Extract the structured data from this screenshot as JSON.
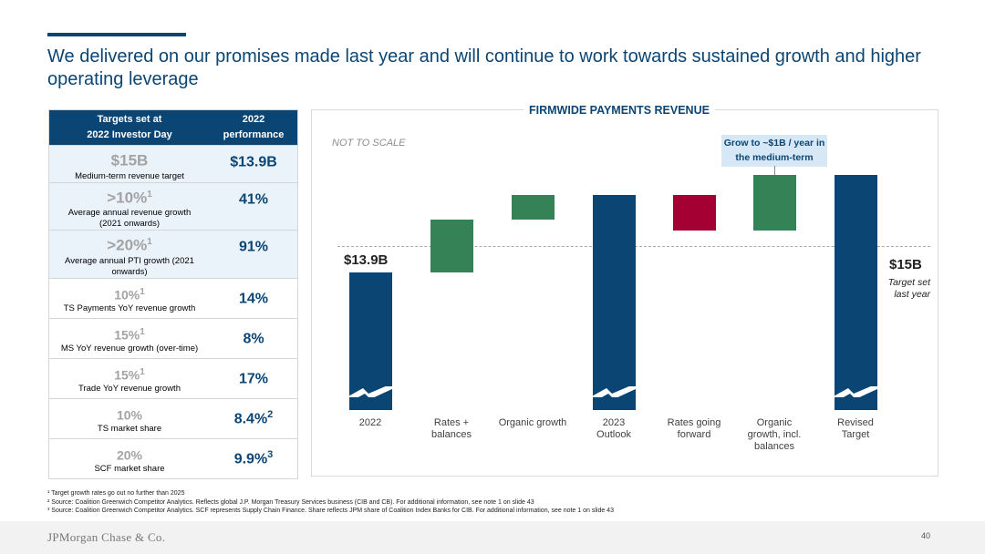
{
  "title": "We delivered on our promises made last year and will continue to work towards sustained growth and higher operating leverage",
  "table": {
    "headers": [
      "Targets set at\n2022 Investor Day",
      "2022\nperformance"
    ],
    "rows": [
      {
        "target": "$15B",
        "sup": "",
        "desc": "Medium-term revenue target",
        "perf": "$13.9B",
        "perf_sup": ""
      },
      {
        "target": ">10%",
        "sup": "1",
        "desc": "Average annual revenue growth (2021 onwards)",
        "perf": "41%",
        "perf_sup": ""
      },
      {
        "target": ">20%",
        "sup": "1",
        "desc": "Average annual PTI growth (2021 onwards)",
        "perf": "91%",
        "perf_sup": ""
      },
      {
        "target": "10%",
        "sup": "1",
        "desc": "TS Payments YoY revenue growth",
        "perf": "14%",
        "perf_sup": ""
      },
      {
        "target": "15%",
        "sup": "1",
        "desc": "MS YoY revenue growth (over-time)",
        "perf": "8%",
        "perf_sup": ""
      },
      {
        "target": "15%",
        "sup": "1",
        "desc": "Trade YoY revenue growth",
        "perf": "17%",
        "perf_sup": ""
      },
      {
        "target": "10%",
        "sup": "",
        "desc": "TS market share",
        "perf": "8.4%",
        "perf_sup": "2"
      },
      {
        "target": "20%",
        "sup": "",
        "desc": "SCF market share",
        "perf": "9.9%",
        "perf_sup": "3"
      }
    ]
  },
  "chart_data": {
    "type": "bar",
    "subtype": "waterfall",
    "title": "FIRMWIDE PAYMENTS REVENUE",
    "note": "NOT TO SCALE",
    "categories": [
      "2022",
      "Rates + balances",
      "Organic growth",
      "2023 Outlook",
      "Rates going forward",
      "Organic growth, incl. balances",
      "Revised Target"
    ],
    "kinds": [
      "total",
      "increase",
      "increase",
      "total",
      "decrease",
      "increase",
      "total"
    ],
    "values": [
      13.9,
      null,
      null,
      null,
      null,
      null,
      15
    ],
    "value_labels": {
      "start": "$13.9B",
      "end": "$15B",
      "end_sub": "Target set last year"
    },
    "callout": "Grow to ~$1B / year in the medium-term",
    "reference_line": {
      "value": 15,
      "style": "dashed"
    },
    "colors": {
      "total": "#0b4574",
      "increase": "#358256",
      "decrease": "#a50034"
    }
  },
  "footnotes": [
    "¹ Target growth rates go out no further than 2025",
    "² Source: Coalition Greenwich Competitor Analytics. Reflects global J.P. Morgan Treasury Services business (CIB and CB). For additional information, see note 1 on slide 43",
    "³ Source: Coalition Greenwich Competitor Analytics. SCF represents Supply Chain Finance. Share reflects JPM share of Coalition Index Banks for CIB. For additional information, see note 1 on slide 43"
  ],
  "footer": {
    "logo": "JPMorgan Chase & Co.",
    "page": "40"
  }
}
